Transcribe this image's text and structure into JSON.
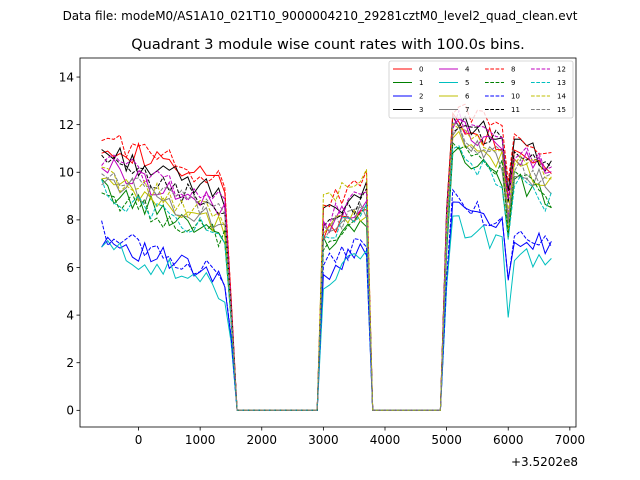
{
  "suptitle": "Data file: modeM0/AS1A10_021T10_9000004210_29281cztM0_level2_quad_clean.evt",
  "chart_data": {
    "type": "line",
    "title": "Quadrant 3 module wise count rates with 100.0s bins.",
    "xlabel": "",
    "ylabel": "",
    "x_offset_label": "+3.5202e8",
    "xlim": [
      -950,
      7100
    ],
    "ylim": [
      -0.7,
      14.8
    ],
    "xticks": [
      0,
      1000,
      2000,
      3000,
      4000,
      5000,
      6000,
      7000
    ],
    "yticks": [
      0,
      2,
      4,
      6,
      8,
      10,
      12,
      14
    ],
    "legend_location": "top-right",
    "legend_columns": 4,
    "series": [
      {
        "name": "0",
        "color": "#ff0000",
        "dash": "solid",
        "base": 11.3,
        "seg2": 8.0,
        "seg3": 12.4
      },
      {
        "name": "1",
        "color": "#008000",
        "dash": "solid",
        "base": 9.3,
        "seg2": 7.6,
        "seg3": 11.0
      },
      {
        "name": "2",
        "color": "#0000ff",
        "dash": "solid",
        "base": 7.3,
        "seg2": 6.3,
        "seg3": 8.9
      },
      {
        "name": "3",
        "color": "#000000",
        "dash": "solid",
        "base": 10.9,
        "seg2": 8.7,
        "seg3": 12.6
      },
      {
        "name": "4",
        "color": "#bf00bf",
        "dash": "solid",
        "base": 10.3,
        "seg2": 8.3,
        "seg3": 12.2
      },
      {
        "name": "5",
        "color": "#00bfbf",
        "dash": "solid",
        "base": 6.9,
        "seg2": 6.0,
        "seg3": 8.1
      },
      {
        "name": "6",
        "color": "#bfbf00",
        "dash": "solid",
        "base": 9.6,
        "seg2": 8.0,
        "seg3": 11.6
      },
      {
        "name": "7",
        "color": "#808080",
        "dash": "solid",
        "base": 9.8,
        "seg2": 7.9,
        "seg3": 11.7
      },
      {
        "name": "8",
        "color": "#ff0000",
        "dash": "dashed",
        "base": 11.5,
        "seg2": 9.2,
        "seg3": 13.0
      },
      {
        "name": "9",
        "color": "#008000",
        "dash": "dashed",
        "base": 9.1,
        "seg2": 7.7,
        "seg3": 11.2
      },
      {
        "name": "10",
        "color": "#0000ff",
        "dash": "dashed",
        "base": 7.5,
        "seg2": 6.6,
        "seg3": 9.0
      },
      {
        "name": "11",
        "color": "#000000",
        "dash": "dashed",
        "base": 10.4,
        "seg2": 8.4,
        "seg3": 12.3
      },
      {
        "name": "12",
        "color": "#bf00bf",
        "dash": "dashed",
        "base": 10.6,
        "seg2": 8.6,
        "seg3": 12.4
      },
      {
        "name": "13",
        "color": "#00bfbf",
        "dash": "dashed",
        "base": 9.2,
        "seg2": 7.8,
        "seg3": 10.9
      },
      {
        "name": "14",
        "color": "#bfbf00",
        "dash": "dashed",
        "base": 9.9,
        "seg2": 9.4,
        "seg3": 11.9
      },
      {
        "name": "15",
        "color": "#808080",
        "dash": "dashed",
        "base": 10.0,
        "seg2": 8.1,
        "seg3": 11.8
      }
    ],
    "segments": [
      {
        "start": -600,
        "end": 1400,
        "key": "base",
        "trend": -0.17
      },
      {
        "start": 1400,
        "end": 1500,
        "key": "drop",
        "trend": 0
      },
      {
        "start": 3000,
        "end": 3700,
        "key": "seg2",
        "trend": 0.12
      },
      {
        "start": 5000,
        "end": 6700,
        "key": "seg3",
        "trend": -0.16
      }
    ]
  }
}
